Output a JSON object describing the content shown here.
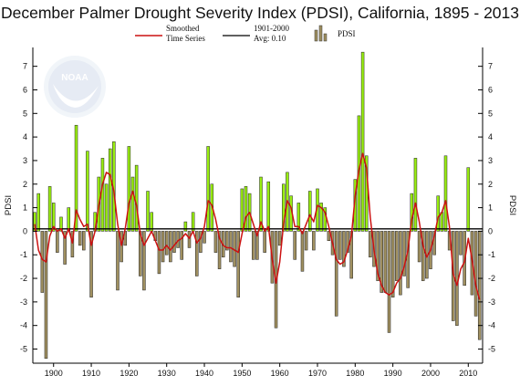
{
  "chart_data": {
    "type": "bar",
    "title": "December Palmer Drought Severity Index (PDSI), California, 1895 - 2013",
    "ylabel": "PDSI",
    "ylabel_right": "PDSI",
    "xlabel": "",
    "ylim": [
      -5.6,
      7.8
    ],
    "xlim": [
      1894.5,
      2013.8
    ],
    "yticks": [
      -5,
      -4,
      -3,
      -2,
      -1,
      0,
      1,
      2,
      3,
      4,
      5,
      6,
      7
    ],
    "xticks": [
      1900,
      1910,
      1920,
      1930,
      1940,
      1950,
      1960,
      1970,
      1980,
      1990,
      2000,
      2010
    ],
    "grid": false,
    "legend": [
      "Smoothed Time Series",
      "1901-2000 Avg: 0.10",
      "PDSI"
    ],
    "legend_placement": "top",
    "colors": {
      "positive_bar": "#99ee11",
      "negative_bar": "#a09060",
      "smoothed_line": "#cc1111",
      "average_line": "#000000"
    },
    "series": [
      {
        "name": "PDSI",
        "x": [
          1895,
          1896,
          1897,
          1898,
          1899,
          1900,
          1901,
          1902,
          1903,
          1904,
          1905,
          1906,
          1907,
          1908,
          1909,
          1910,
          1911,
          1912,
          1913,
          1914,
          1915,
          1916,
          1917,
          1918,
          1919,
          1920,
          1921,
          1922,
          1923,
          1924,
          1925,
          1926,
          1927,
          1928,
          1929,
          1930,
          1931,
          1932,
          1933,
          1934,
          1935,
          1936,
          1937,
          1938,
          1939,
          1940,
          1941,
          1942,
          1943,
          1944,
          1945,
          1946,
          1947,
          1948,
          1949,
          1950,
          1951,
          1952,
          1953,
          1954,
          1955,
          1956,
          1957,
          1958,
          1959,
          1960,
          1961,
          1962,
          1963,
          1964,
          1965,
          1966,
          1967,
          1968,
          1969,
          1970,
          1971,
          1972,
          1973,
          1974,
          1975,
          1976,
          1977,
          1978,
          1979,
          1980,
          1981,
          1982,
          1983,
          1984,
          1985,
          1986,
          1987,
          1988,
          1989,
          1990,
          1991,
          1992,
          1993,
          1994,
          1995,
          1996,
          1997,
          1998,
          1999,
          2000,
          2001,
          2002,
          2003,
          2004,
          2005,
          2006,
          2007,
          2008,
          2009,
          2010,
          2011,
          2012,
          2013
        ],
        "values": [
          0.8,
          1.6,
          -2.6,
          -5.4,
          1.9,
          1.2,
          -0.9,
          0.6,
          -1.4,
          1.0,
          -1.1,
          4.5,
          -0.6,
          -0.8,
          3.4,
          -2.8,
          0.8,
          2.3,
          3.1,
          2.0,
          3.5,
          3.8,
          -2.5,
          -1.3,
          -0.6,
          3.6,
          2.3,
          2.8,
          -1.9,
          -2.5,
          1.7,
          0.8,
          -0.4,
          -1.8,
          -1.3,
          -1.0,
          -1.3,
          -0.9,
          -0.7,
          -1.2,
          0.4,
          -0.7,
          0.8,
          -1.9,
          -0.9,
          -0.5,
          3.6,
          2.0,
          -0.9,
          -1.6,
          -1.1,
          -0.8,
          -1.3,
          -1.5,
          -2.8,
          1.8,
          1.9,
          1.6,
          -1.2,
          -1.2,
          2.3,
          -0.9,
          2.1,
          -2.2,
          -4.1,
          -0.6,
          2.0,
          2.5,
          1.5,
          -1.2,
          1.2,
          -1.7,
          -0.8,
          1.7,
          -0.8,
          1.8,
          1.2,
          1.0,
          -0.4,
          -1.0,
          -3.6,
          -1.2,
          -1.5,
          -0.9,
          -2.0,
          2.2,
          4.9,
          7.6,
          3.2,
          -1.1,
          -1.5,
          -2.1,
          -2.6,
          -2.6,
          -4.3,
          -2.8,
          -2.1,
          -2.7,
          -1.9,
          -2.4,
          1.6,
          3.1,
          -1.3,
          -2.1,
          -2.0,
          -1.6,
          -1.0,
          1.5,
          0.8,
          3.2,
          -0.8,
          -3.8,
          -4.0,
          -1.0,
          -2.3,
          2.7,
          -2.7,
          -3.6,
          -4.6
        ]
      },
      {
        "name": "Smoothed Time Series",
        "x": [
          1895,
          1896,
          1897,
          1898,
          1899,
          1900,
          1901,
          1902,
          1903,
          1904,
          1905,
          1906,
          1907,
          1908,
          1909,
          1910,
          1911,
          1912,
          1913,
          1914,
          1915,
          1916,
          1917,
          1918,
          1919,
          1920,
          1921,
          1922,
          1923,
          1924,
          1925,
          1926,
          1927,
          1928,
          1929,
          1930,
          1931,
          1932,
          1933,
          1934,
          1935,
          1936,
          1937,
          1938,
          1939,
          1940,
          1941,
          1942,
          1943,
          1944,
          1945,
          1946,
          1947,
          1948,
          1949,
          1950,
          1951,
          1952,
          1953,
          1954,
          1955,
          1956,
          1957,
          1958,
          1959,
          1960,
          1961,
          1962,
          1963,
          1964,
          1965,
          1966,
          1967,
          1968,
          1969,
          1970,
          1971,
          1972,
          1973,
          1974,
          1975,
          1976,
          1977,
          1978,
          1979,
          1980,
          1981,
          1982,
          1983,
          1984,
          1985,
          1986,
          1987,
          1988,
          1989,
          1990,
          1991,
          1992,
          1993,
          1994,
          1995,
          1996,
          1997,
          1998,
          1999,
          2000,
          2001,
          2002,
          2003,
          2004,
          2005,
          2006,
          2007,
          2008,
          2009,
          2010,
          2011,
          2012,
          2013
        ],
        "values": [
          0.3,
          -0.8,
          -1.2,
          -1.3,
          -0.2,
          0.2,
          0.0,
          0.1,
          -0.3,
          0.1,
          -0.5,
          0.9,
          0.5,
          0.2,
          0.3,
          -0.6,
          0.0,
          1.1,
          2.0,
          2.5,
          2.4,
          1.7,
          0.3,
          -0.6,
          0.1,
          1.2,
          1.7,
          1.1,
          -0.1,
          -0.6,
          -0.3,
          0.0,
          -0.4,
          -0.8,
          -0.8,
          -0.6,
          -0.8,
          -0.6,
          -0.4,
          -0.3,
          -0.1,
          -0.3,
          0.0,
          -0.5,
          -0.3,
          0.2,
          1.3,
          1.1,
          0.5,
          -0.3,
          -0.6,
          -0.7,
          -0.7,
          -0.8,
          -0.9,
          -0.1,
          0.6,
          0.8,
          0.3,
          -0.2,
          0.4,
          0.0,
          0.2,
          -1.2,
          -2.2,
          -1.3,
          0.3,
          1.3,
          1.0,
          0.2,
          0.2,
          -0.1,
          0.3,
          0.7,
          0.4,
          1.1,
          1.0,
          0.8,
          0.2,
          -0.5,
          -1.2,
          -1.4,
          -1.3,
          -0.8,
          -0.2,
          1.5,
          2.6,
          3.3,
          2.7,
          0.6,
          -0.8,
          -1.8,
          -2.3,
          -2.6,
          -2.7,
          -2.6,
          -2.2,
          -2.0,
          -1.5,
          -0.8,
          0.5,
          1.2,
          0.4,
          -0.6,
          -1.1,
          -0.8,
          -0.2,
          0.6,
          0.8,
          1.3,
          0.2,
          -1.8,
          -2.3,
          -1.6,
          -1.3,
          -0.3,
          -1.2,
          -2.3,
          -2.9
        ]
      },
      {
        "name": "1901-2000 Avg: 0.10",
        "value": 0.1
      }
    ]
  }
}
